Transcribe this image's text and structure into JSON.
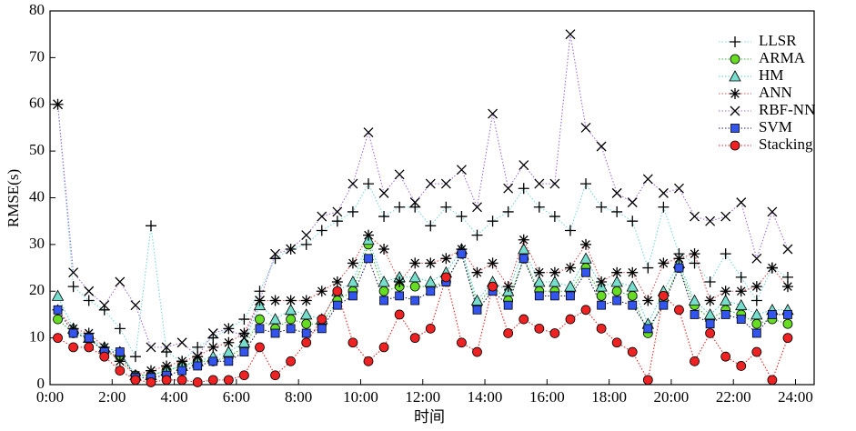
{
  "chart_data": {
    "type": "line",
    "xlabel": "时间",
    "ylabel": "RMSE(s)",
    "x": [
      0.25,
      0.75,
      1.25,
      1.75,
      2.25,
      2.75,
      3.25,
      3.75,
      4.25,
      4.75,
      5.25,
      5.75,
      6.25,
      6.75,
      7.25,
      7.75,
      8.25,
      8.75,
      9.25,
      9.75,
      10.25,
      10.75,
      11.25,
      11.75,
      12.25,
      12.75,
      13.25,
      13.75,
      14.25,
      14.75,
      15.25,
      15.75,
      16.25,
      16.75,
      17.25,
      17.75,
      18.25,
      18.75,
      19.25,
      19.75,
      20.25,
      20.75,
      21.25,
      21.75,
      22.25,
      22.75,
      23.25,
      23.75
    ],
    "xlim": [
      0,
      24.6
    ],
    "xticks": [
      {
        "value": 0,
        "label": "0:00"
      },
      {
        "value": 2,
        "label": "2:00"
      },
      {
        "value": 4,
        "label": "4:00"
      },
      {
        "value": 6,
        "label": "6:00"
      },
      {
        "value": 8,
        "label": "8:00"
      },
      {
        "value": 10,
        "label": "10:00"
      },
      {
        "value": 12,
        "label": "12:00"
      },
      {
        "value": 14,
        "label": "14:00"
      },
      {
        "value": 16,
        "label": "16:00"
      },
      {
        "value": 18,
        "label": "18:00"
      },
      {
        "value": 20,
        "label": "20:00"
      },
      {
        "value": 22,
        "label": "22:00"
      },
      {
        "value": 24,
        "label": "24:00"
      }
    ],
    "ylim": [
      0,
      80
    ],
    "yticks": [
      0,
      10,
      20,
      30,
      40,
      50,
      60,
      70,
      80
    ],
    "legend": "upper right",
    "series": [
      {
        "name": "LLSR",
        "color": "#000000",
        "line_color": "#7fd8d8",
        "marker": "plus",
        "values": [
          60,
          21,
          18,
          16,
          12,
          6,
          34,
          7,
          5,
          8,
          10,
          12,
          14,
          20,
          27,
          29,
          30,
          33,
          35,
          37,
          43,
          36,
          38,
          38,
          34,
          38,
          36,
          32,
          35,
          37,
          42,
          38,
          36,
          33,
          43,
          38,
          37,
          35,
          25,
          38,
          28,
          26,
          22,
          28,
          23,
          18,
          25,
          23
        ]
      },
      {
        "name": "ARMA",
        "color": "#66dd22",
        "line_color": "#33bb33",
        "marker": "circle",
        "values": [
          14,
          11,
          10,
          7,
          6,
          2,
          2,
          3,
          4,
          5,
          5,
          6,
          8,
          14,
          12,
          14,
          13,
          13,
          18,
          20,
          30,
          20,
          21,
          21,
          21,
          22,
          28,
          17,
          21,
          18,
          27,
          20,
          20,
          20,
          25,
          19,
          20,
          19,
          11,
          18,
          25,
          17,
          14,
          16,
          15,
          13,
          14,
          13
        ]
      },
      {
        "name": "HM",
        "color": "#77ddcc",
        "line_color": "#55cccc",
        "marker": "triangle",
        "values": [
          19,
          12,
          10,
          8,
          7,
          2,
          2,
          3,
          4,
          5,
          6,
          7,
          9,
          17,
          14,
          16,
          15,
          14,
          20,
          22,
          31,
          22,
          23,
          23,
          22,
          24,
          29,
          18,
          22,
          20,
          29,
          22,
          22,
          21,
          27,
          21,
          22,
          21,
          13,
          20,
          26,
          18,
          15,
          18,
          17,
          15,
          16,
          16
        ]
      },
      {
        "name": "ANN",
        "color": "#000000",
        "line_color": "#e05050",
        "marker": "asterisk",
        "values": [
          16,
          12,
          11,
          8,
          5,
          2,
          3,
          4,
          5,
          6,
          8,
          9,
          11,
          18,
          18,
          18,
          18,
          20,
          22,
          26,
          32,
          29,
          22,
          26,
          26,
          27,
          29,
          24,
          26,
          21,
          31,
          24,
          24,
          25,
          30,
          22,
          24,
          24,
          18,
          26,
          27,
          28,
          18,
          20,
          20,
          21,
          25,
          21
        ]
      },
      {
        "name": "RBF-NN",
        "color": "#000000",
        "line_color": "#a070e0",
        "marker": "x",
        "values": [
          60,
          24,
          20,
          17,
          22,
          17,
          8,
          8,
          9,
          6,
          11,
          12,
          10,
          18,
          28,
          29,
          32,
          36,
          37,
          43,
          54,
          41,
          45,
          39,
          43,
          43,
          46,
          38,
          58,
          42,
          47,
          43,
          43,
          75,
          55,
          51,
          41,
          39,
          44,
          41,
          42,
          36,
          35,
          36,
          39,
          27,
          37,
          29
        ]
      },
      {
        "name": "SVM",
        "color": "#3355ee",
        "line_color": "#222266",
        "marker": "square",
        "values": [
          16,
          11,
          10,
          7,
          7,
          1.5,
          1.5,
          2,
          3,
          4,
          5,
          5,
          7,
          12,
          11,
          12,
          11,
          12,
          17,
          19,
          27,
          18,
          19,
          18,
          20,
          22,
          28,
          16,
          20,
          17,
          27,
          19,
          19,
          19,
          24,
          17,
          18,
          17,
          12,
          17,
          25,
          15,
          13,
          15,
          14,
          11,
          15,
          15
        ]
      },
      {
        "name": "Stacking",
        "color": "#ee2222",
        "line_color": "#ee2222",
        "marker": "circle",
        "values": [
          10,
          8,
          8,
          6,
          3,
          1,
          0.5,
          1,
          1,
          0.5,
          1,
          1,
          2,
          8,
          2,
          5,
          9,
          14,
          20,
          9,
          5,
          8,
          15,
          10,
          12,
          23,
          9,
          7,
          21,
          11,
          14,
          12,
          11,
          14,
          16,
          12,
          9,
          7,
          1,
          19,
          16,
          5,
          11,
          6,
          4,
          7,
          1,
          10
        ]
      }
    ]
  }
}
